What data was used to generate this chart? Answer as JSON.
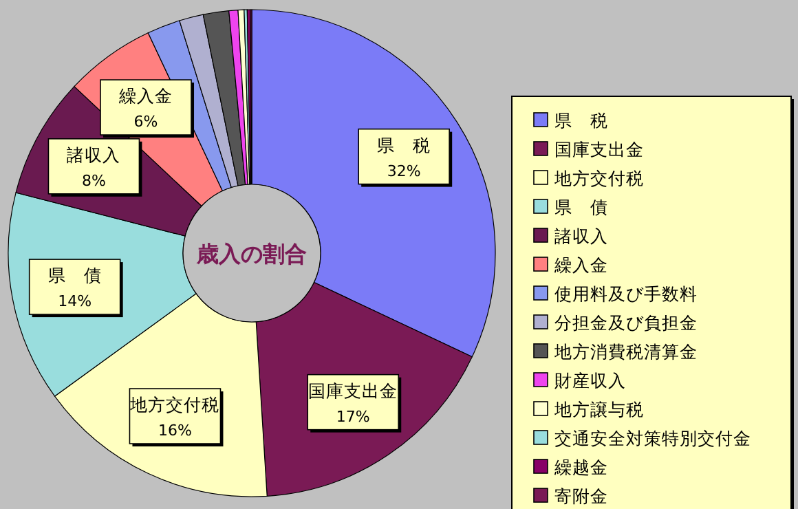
{
  "chart_data": {
    "type": "donut",
    "title": "歳入の割合",
    "categories": [
      "県　税",
      "国庫支出金",
      "地方交付税",
      "県　債",
      "諸収入",
      "繰入金",
      "使用料及び手数料",
      "分担金及び負担金",
      "地方消費税清算金",
      "財産収入",
      "地方譲与税",
      "交通安全対策特別交付金",
      "繰越金",
      "寄附金"
    ],
    "values": [
      32,
      17,
      16,
      14,
      8,
      6,
      2.2,
      1.6,
      1.7,
      0.6,
      0.4,
      0.2,
      0.2,
      0.1
    ],
    "value_labels": [
      "32%",
      "17%",
      "16%",
      "14%",
      "8%",
      "6%",
      null,
      null,
      null,
      null,
      null,
      null,
      null,
      null
    ],
    "colors": [
      "#7b7bf7",
      "#7a1a55",
      "#ffffc0",
      "#99dddd",
      "#6a1a50",
      "#ff8080",
      "#8899ee",
      "#b0b0d0",
      "#555555",
      "#ee44ee",
      "#ffffd0",
      "#99dddd",
      "#880066",
      "#7a1a55"
    ],
    "legend": "right"
  }
}
